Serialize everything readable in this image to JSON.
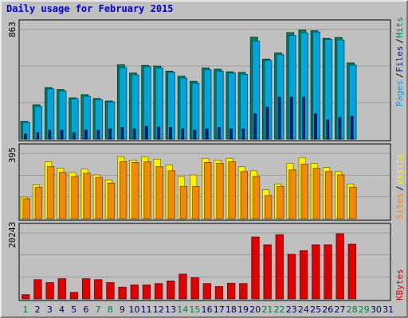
{
  "title": "Daily usage for February 2015",
  "colors": {
    "hits": "#00805c",
    "files": "#00a6d9",
    "pages": "#0b217b",
    "visits": "#fff000",
    "sites": "#f08a00",
    "kbytes": "#e00000",
    "weekend_day_label": "#008040",
    "day_label": "#00006a"
  },
  "panels": {
    "top": {
      "ymax_label": "863",
      "legend": [
        "Pages",
        "Files",
        "Hits"
      ]
    },
    "middle": {
      "ymax_label": "395",
      "legend": [
        "Sites",
        "Visits"
      ]
    },
    "bottom": {
      "ymax_label": "20243",
      "legend": [
        "KBytes"
      ]
    }
  },
  "chart_data": [
    {
      "type": "bar",
      "title": "Daily usage for February 2015",
      "categories": [
        "1",
        "2",
        "3",
        "4",
        "5",
        "6",
        "7",
        "8",
        "9",
        "10",
        "11",
        "12",
        "13",
        "14",
        "15",
        "16",
        "17",
        "18",
        "19",
        "20",
        "21",
        "22",
        "23",
        "24",
        "25",
        "26",
        "27",
        "28",
        "29",
        "30",
        "31"
      ],
      "ylim": [
        0,
        863
      ],
      "series": [
        {
          "name": "Hits",
          "values": [
            140,
            270,
            405,
            390,
            325,
            350,
            320,
            300,
            585,
            520,
            580,
            575,
            535,
            495,
            455,
            560,
            550,
            530,
            525,
            802,
            630,
            678,
            838,
            858,
            853,
            793,
            800,
            600,
            0,
            0,
            0
          ]
        },
        {
          "name": "Files",
          "values": [
            132,
            257,
            395,
            378,
            318,
            337,
            310,
            293,
            563,
            505,
            570,
            560,
            525,
            480,
            440,
            545,
            535,
            520,
            510,
            770,
            620,
            665,
            815,
            835,
            843,
            785,
            780,
            582,
            0,
            0,
            0
          ]
        },
        {
          "name": "Pages",
          "values": [
            40,
            50,
            70,
            70,
            50,
            70,
            70,
            80,
            90,
            80,
            100,
            95,
            90,
            80,
            70,
            80,
            90,
            80,
            80,
            200,
            250,
            330,
            330,
            330,
            200,
            150,
            170,
            180,
            0,
            0,
            0
          ]
        }
      ]
    },
    {
      "type": "bar",
      "categories": [
        "1",
        "2",
        "3",
        "4",
        "5",
        "6",
        "7",
        "8",
        "9",
        "10",
        "11",
        "12",
        "13",
        "14",
        "15",
        "16",
        "17",
        "18",
        "19",
        "20",
        "21",
        "22",
        "23",
        "24",
        "25",
        "26",
        "27",
        "28",
        "29",
        "30",
        "31"
      ],
      "ylim": [
        0,
        395
      ],
      "series": [
        {
          "name": "Visits",
          "values": [
            130,
            205,
            345,
            305,
            280,
            300,
            265,
            235,
            375,
            355,
            375,
            360,
            325,
            255,
            265,
            365,
            355,
            365,
            315,
            290,
            175,
            210,
            335,
            370,
            335,
            310,
            285,
            210,
            0,
            0,
            0
          ]
        },
        {
          "name": "Sites",
          "values": [
            120,
            190,
            315,
            280,
            255,
            275,
            250,
            215,
            345,
            340,
            345,
            315,
            290,
            195,
            195,
            340,
            335,
            345,
            285,
            255,
            140,
            195,
            295,
            330,
            305,
            285,
            265,
            190,
            0,
            0,
            0
          ]
        }
      ]
    },
    {
      "type": "bar",
      "categories": [
        "1",
        "2",
        "3",
        "4",
        "5",
        "6",
        "7",
        "8",
        "9",
        "10",
        "11",
        "12",
        "13",
        "14",
        "15",
        "16",
        "17",
        "18",
        "19",
        "20",
        "21",
        "22",
        "23",
        "24",
        "25",
        "26",
        "27",
        "28",
        "29",
        "30",
        "31"
      ],
      "ylim": [
        0,
        20243
      ],
      "series": [
        {
          "name": "KBytes",
          "values": [
            1300,
            5900,
            5000,
            6200,
            2000,
            6200,
            5900,
            5000,
            3600,
            4300,
            4300,
            4700,
            5500,
            7600,
            6500,
            4700,
            3800,
            4800,
            4700,
            19000,
            16600,
            19700,
            13700,
            14800,
            16600,
            16600,
            20000,
            16800,
            0,
            0,
            0
          ]
        }
      ]
    }
  ],
  "weekend_days": [
    1,
    7,
    8,
    14,
    15,
    21,
    22,
    28,
    29
  ]
}
